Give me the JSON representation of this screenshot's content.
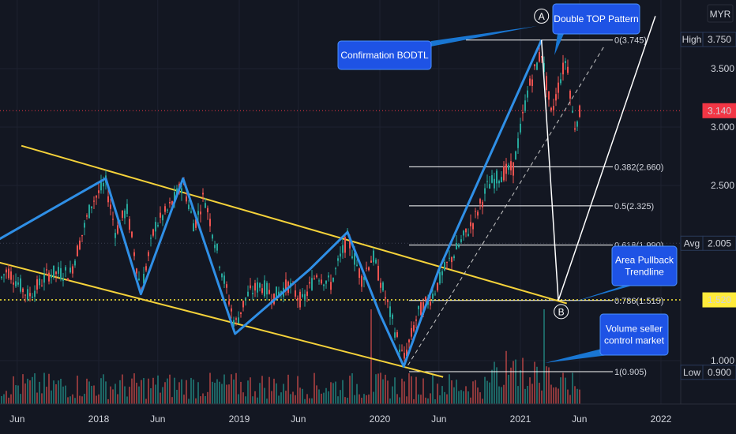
{
  "chart_data": {
    "type": "candlestick",
    "currency": "MYR",
    "x_ticks": [
      {
        "label": "Jun",
        "t": 2017.42
      },
      {
        "label": "2018",
        "t": 2018.0
      },
      {
        "label": "Jun",
        "t": 2018.42
      },
      {
        "label": "2019",
        "t": 2019.0
      },
      {
        "label": "Jun",
        "t": 2019.42
      },
      {
        "label": "2020",
        "t": 2020.0
      },
      {
        "label": "Jun",
        "t": 2020.42
      },
      {
        "label": "2021",
        "t": 2021.0
      },
      {
        "label": "Jun",
        "t": 2021.42
      },
      {
        "label": "2022",
        "t": 2022.0
      }
    ],
    "y_ticks": [
      1.0,
      2.5,
      3.0,
      3.5
    ],
    "ylim": [
      0.9,
      3.75
    ],
    "price_levels": [
      {
        "label": "High",
        "value": "3.750",
        "v": 3.75,
        "color": "#131722",
        "border": "#2a3a5a"
      },
      {
        "label": "",
        "value": "3.140",
        "v": 3.14,
        "color": "#f23645",
        "border": "#f23645"
      },
      {
        "label": "Avg",
        "value": "2.005",
        "v": 2.005,
        "color": "#131722",
        "border": "#2a3a5a"
      },
      {
        "label": "",
        "value": "1.520",
        "v": 1.52,
        "color": "#ffeb3b",
        "border": "#ffeb3b"
      },
      {
        "label": "Low",
        "value": "0.900",
        "v": 0.9,
        "color": "#131722",
        "border": "#2a3a5a"
      }
    ],
    "fib_levels": [
      {
        "label": "0(3.745)",
        "v": 3.745
      },
      {
        "label": "0.382(2.660)",
        "v": 2.66
      },
      {
        "label": "0.5(2.325)",
        "v": 2.325
      },
      {
        "label": "0.618(1.990)",
        "v": 1.99
      },
      {
        "label": "0.786(1.515)",
        "v": 1.515
      },
      {
        "label": "1(0.905)",
        "v": 0.905
      }
    ],
    "zigzag": [
      {
        "t": 2017.0,
        "v": 1.84
      },
      {
        "t": 2018.05,
        "v": 2.56
      },
      {
        "t": 2018.3,
        "v": 1.57
      },
      {
        "t": 2018.6,
        "v": 2.56
      },
      {
        "t": 2018.97,
        "v": 1.23
      },
      {
        "t": 2019.5,
        "v": 1.78
      },
      {
        "t": 2019.77,
        "v": 2.1
      },
      {
        "t": 2020.0,
        "v": 1.4
      },
      {
        "t": 2020.17,
        "v": 0.95
      },
      {
        "t": 2020.42,
        "v": 1.78
      },
      {
        "t": 2021.15,
        "v": 3.745
      }
    ],
    "channel_upper": [
      {
        "t": 2017.45,
        "v": 2.84
      },
      {
        "t": 2021.33,
        "v": 1.49
      }
    ],
    "channel_lower": [
      {
        "t": 2017.1,
        "v": 1.9
      },
      {
        "t": 2020.45,
        "v": 0.86
      }
    ],
    "dashed_trend": [
      {
        "t": 2020.2,
        "v": 0.96
      },
      {
        "t": 2021.6,
        "v": 3.7
      }
    ],
    "projection": [
      {
        "t": 2021.15,
        "v": 3.745
      },
      {
        "t": 2021.27,
        "v": 1.515
      },
      {
        "t": 2021.96,
        "v": 3.95
      }
    ],
    "points": [
      {
        "label": "A",
        "t": 2021.15,
        "v": 3.95
      },
      {
        "label": "B",
        "t": 2021.29,
        "v": 1.42
      }
    ],
    "annotations": [
      {
        "text": "Double TOP Pattern",
        "lines": [
          "Double TOP Pattern"
        ]
      },
      {
        "text": "Confirmation BODTL",
        "lines": [
          "Confirmation BODTL"
        ]
      },
      {
        "text": "Area Pullback Trendline",
        "lines": [
          "Area Pullback",
          "Trendline"
        ]
      },
      {
        "text": "Volume seller control market",
        "lines": [
          "Volume seller",
          "control market"
        ]
      }
    ],
    "price_path": [
      {
        "t": 2016.8,
        "v": 1.38
      },
      {
        "t": 2016.9,
        "v": 1.42
      },
      {
        "t": 2017.0,
        "v": 1.4
      },
      {
        "t": 2017.1,
        "v": 1.65
      },
      {
        "t": 2017.2,
        "v": 1.52
      },
      {
        "t": 2017.35,
        "v": 1.78
      },
      {
        "t": 2017.5,
        "v": 1.55
      },
      {
        "t": 2017.65,
        "v": 1.75
      },
      {
        "t": 2017.8,
        "v": 1.75
      },
      {
        "t": 2017.95,
        "v": 2.35
      },
      {
        "t": 2018.05,
        "v": 2.52
      },
      {
        "t": 2018.12,
        "v": 2.1
      },
      {
        "t": 2018.2,
        "v": 2.3
      },
      {
        "t": 2018.3,
        "v": 1.6
      },
      {
        "t": 2018.4,
        "v": 2.15
      },
      {
        "t": 2018.5,
        "v": 2.3
      },
      {
        "t": 2018.6,
        "v": 2.52
      },
      {
        "t": 2018.68,
        "v": 2.15
      },
      {
        "t": 2018.75,
        "v": 2.42
      },
      {
        "t": 2018.85,
        "v": 1.9
      },
      {
        "t": 2018.97,
        "v": 1.3
      },
      {
        "t": 2019.05,
        "v": 1.55
      },
      {
        "t": 2019.15,
        "v": 1.65
      },
      {
        "t": 2019.25,
        "v": 1.55
      },
      {
        "t": 2019.35,
        "v": 1.65
      },
      {
        "t": 2019.45,
        "v": 1.5
      },
      {
        "t": 2019.55,
        "v": 1.75
      },
      {
        "t": 2019.65,
        "v": 1.65
      },
      {
        "t": 2019.77,
        "v": 2.05
      },
      {
        "t": 2019.87,
        "v": 1.7
      },
      {
        "t": 2019.95,
        "v": 1.9
      },
      {
        "t": 2020.05,
        "v": 1.5
      },
      {
        "t": 2020.17,
        "v": 1.0
      },
      {
        "t": 2020.27,
        "v": 1.4
      },
      {
        "t": 2020.37,
        "v": 1.55
      },
      {
        "t": 2020.47,
        "v": 1.8
      },
      {
        "t": 2020.57,
        "v": 2.0
      },
      {
        "t": 2020.67,
        "v": 2.2
      },
      {
        "t": 2020.77,
        "v": 2.5
      },
      {
        "t": 2020.87,
        "v": 2.6
      },
      {
        "t": 2020.95,
        "v": 2.65
      },
      {
        "t": 2021.05,
        "v": 3.3
      },
      {
        "t": 2021.15,
        "v": 3.65
      },
      {
        "t": 2021.22,
        "v": 3.1
      },
      {
        "t": 2021.28,
        "v": 3.4
      },
      {
        "t": 2021.33,
        "v": 3.6
      },
      {
        "t": 2021.38,
        "v": 3.0
      },
      {
        "t": 2021.45,
        "v": 3.2
      }
    ]
  }
}
